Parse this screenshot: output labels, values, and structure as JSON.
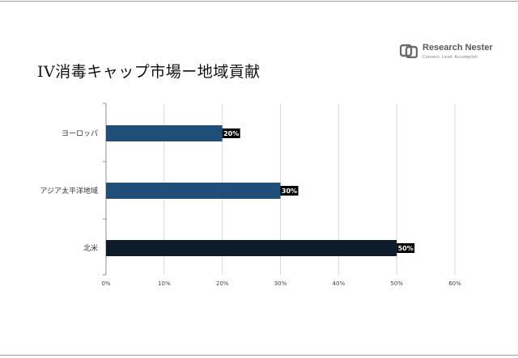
{
  "title": "IV消毒キャップ市場ー地域貢献",
  "logo": {
    "name": "Research Nester",
    "tagline": "Connect. Lead. Accomplish",
    "icon": "research-nester-logo-icon"
  },
  "colors": {
    "europe_bar": "#1f4e79",
    "apac_bar": "#1f4e79",
    "na_bar": "#0d1b2a",
    "label_bg": "#000000"
  },
  "chart_data": {
    "type": "bar",
    "orientation": "horizontal",
    "title": "IV消毒キャップ市場ー地域貢献",
    "categories": [
      "ヨーロッパ",
      "アジア太平洋地域",
      "北米"
    ],
    "values": [
      20,
      30,
      50
    ],
    "data_labels": [
      "20%",
      "30%",
      "50%"
    ],
    "xlim": [
      0,
      60
    ],
    "x_ticks": [
      "0%",
      "10%",
      "20%",
      "30%",
      "40%",
      "50%",
      "60%"
    ],
    "grid": true,
    "legend": "none"
  }
}
